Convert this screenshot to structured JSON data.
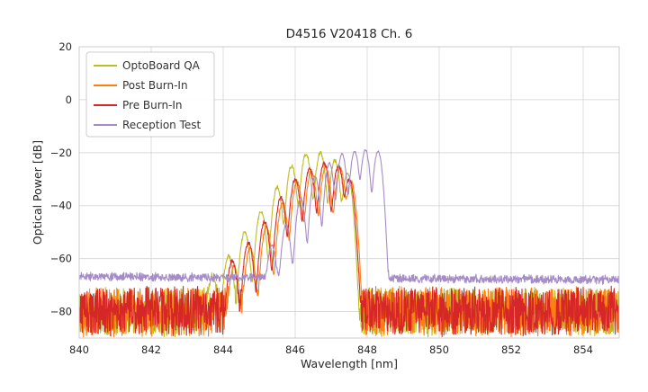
{
  "chart_data": {
    "type": "line",
    "title": "D4516 V20418 Ch. 6",
    "xlabel": "Wavelength [nm]",
    "ylabel": "Optical Power [dB]",
    "xlim": [
      840,
      855
    ],
    "ylim": [
      -90,
      20
    ],
    "xticks": [
      840,
      842,
      844,
      846,
      848,
      850,
      852,
      854
    ],
    "yticks": [
      20,
      0,
      -20,
      -40,
      -60,
      -80
    ],
    "grid": true,
    "grid_color": "#dcdcdc",
    "frame_color": "#cccccc",
    "legend_position": "upper left",
    "sample_step_nm": 0.01,
    "series": [
      {
        "name": "OptoBoard QA",
        "color": "#bcbd22",
        "seed": 11,
        "mode_sigma_nm": 0.065,
        "noise_floor_start_db": -80,
        "noise_floor_end_db": -80,
        "noise_amp_db": 9,
        "signal_jitter_db": 0.7,
        "peaks": [
          {
            "center": 843.7,
            "height": -67
          },
          {
            "center": 844.15,
            "height": -59
          },
          {
            "center": 844.6,
            "height": -50
          },
          {
            "center": 845.05,
            "height": -42
          },
          {
            "center": 845.5,
            "height": -33
          },
          {
            "center": 845.9,
            "height": -25
          },
          {
            "center": 846.3,
            "height": -20.5
          },
          {
            "center": 846.7,
            "height": -20
          },
          {
            "center": 847.1,
            "height": -23
          },
          {
            "center": 847.45,
            "height": -28
          }
        ]
      },
      {
        "name": "Post Burn-In",
        "color": "#ff7f0e",
        "seed": 22,
        "mode_sigma_nm": 0.065,
        "noise_floor_start_db": -80,
        "noise_floor_end_db": -80,
        "noise_amp_db": 9,
        "signal_jitter_db": 0.7,
        "peaks": [
          {
            "center": 844.3,
            "height": -63
          },
          {
            "center": 844.75,
            "height": -56
          },
          {
            "center": 845.2,
            "height": -48
          },
          {
            "center": 845.65,
            "height": -39
          },
          {
            "center": 846.05,
            "height": -31
          },
          {
            "center": 846.45,
            "height": -27
          },
          {
            "center": 846.85,
            "height": -25
          },
          {
            "center": 847.25,
            "height": -26
          },
          {
            "center": 847.55,
            "height": -31
          }
        ]
      },
      {
        "name": "Pre Burn-In",
        "color": "#d62728",
        "seed": 33,
        "mode_sigma_nm": 0.065,
        "noise_floor_start_db": -80,
        "noise_floor_end_db": -80,
        "noise_amp_db": 9,
        "signal_jitter_db": 0.7,
        "peaks": [
          {
            "center": 844.25,
            "height": -61
          },
          {
            "center": 844.7,
            "height": -54
          },
          {
            "center": 845.15,
            "height": -46
          },
          {
            "center": 845.6,
            "height": -37
          },
          {
            "center": 846.0,
            "height": -30
          },
          {
            "center": 846.4,
            "height": -26
          },
          {
            "center": 846.8,
            "height": -24
          },
          {
            "center": 847.2,
            "height": -25
          },
          {
            "center": 847.5,
            "height": -30
          }
        ]
      },
      {
        "name": "Reception Test",
        "color": "#a58cc8",
        "seed": 44,
        "mode_sigma_nm": 0.06,
        "noise_floor_start_db": -66.8,
        "noise_floor_end_db": -68,
        "noise_amp_db": 1.4,
        "signal_jitter_db": 0.4,
        "peaks": [
          {
            "center": 845.35,
            "height": -55
          },
          {
            "center": 845.75,
            "height": -47
          },
          {
            "center": 846.15,
            "height": -37
          },
          {
            "center": 846.55,
            "height": -29
          },
          {
            "center": 846.95,
            "height": -24
          },
          {
            "center": 847.3,
            "height": -20.5
          },
          {
            "center": 847.65,
            "height": -19.5
          },
          {
            "center": 847.95,
            "height": -19
          },
          {
            "center": 848.3,
            "height": -19.5
          }
        ]
      }
    ]
  }
}
